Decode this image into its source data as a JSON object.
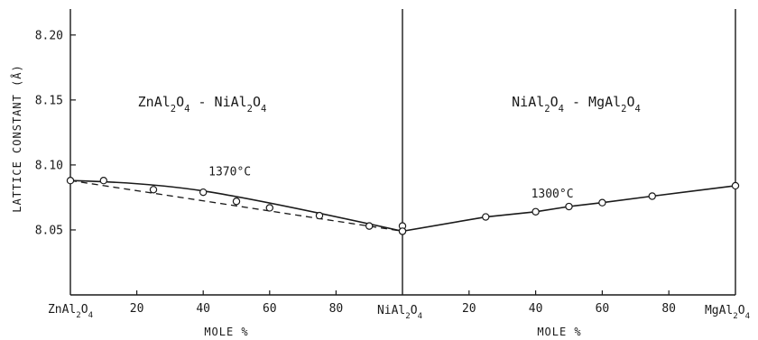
{
  "chart_data": {
    "type": "line",
    "ylabel": "LATTICE CONSTANT (Å)",
    "ylim": [
      8.0,
      8.22
    ],
    "yticks": [
      "8.05",
      "8.10",
      "8.15",
      "8.20"
    ],
    "grid": false,
    "panels": [
      {
        "title_parts": [
          "ZnAl",
          "2",
          "O",
          "4",
          " - NiAl",
          "2",
          "O",
          "4"
        ],
        "xlabel": "MOLE %",
        "xlim": [
          0,
          100
        ],
        "end_labels": [
          [
            "ZnAl",
            "2",
            "O",
            "4"
          ],
          [
            "NiAl",
            "2",
            "O",
            "4"
          ]
        ],
        "xticks": [
          "20",
          "40",
          "60",
          "80"
        ],
        "xtick_values": [
          20,
          40,
          60,
          80
        ],
        "annotation": "1370°C",
        "annotation_at": [
          48,
          8.092
        ],
        "series": [
          {
            "style": "solid",
            "x": [
              0,
              40,
              100
            ],
            "y": [
              8.088,
              8.08,
              8.049
            ]
          },
          {
            "style": "dashed",
            "x": [
              0,
              100
            ],
            "y": [
              8.088,
              8.049
            ]
          },
          {
            "style": "points",
            "x": [
              0,
              10,
              25,
              40,
              50,
              60,
              75,
              90,
              100,
              100
            ],
            "y": [
              8.088,
              8.088,
              8.081,
              8.079,
              8.072,
              8.067,
              8.061,
              8.053,
              8.049,
              8.053
            ]
          }
        ]
      },
      {
        "title_parts": [
          "NiAl",
          "2",
          "O",
          "4",
          " - MgAl",
          "2",
          "O",
          "4"
        ],
        "xlabel": "MOLE %",
        "xlim": [
          0,
          100
        ],
        "end_labels": [
          [
            "NiAl",
            "2",
            "O",
            "4"
          ],
          [
            "MgAl",
            "2",
            "O",
            "4"
          ]
        ],
        "xticks": [
          "20",
          "40",
          "60",
          "80"
        ],
        "xtick_values": [
          20,
          40,
          60,
          80
        ],
        "annotation": "1300°C",
        "annotation_at": [
          45,
          8.075
        ],
        "series": [
          {
            "style": "solid",
            "x": [
              0,
              25,
              40,
              50,
              60,
              75,
              100
            ],
            "y": [
              8.049,
              8.06,
              8.064,
              8.068,
              8.071,
              8.076,
              8.084
            ]
          },
          {
            "style": "points",
            "x": [
              0,
              25,
              40,
              50,
              60,
              75,
              100
            ],
            "y": [
              8.049,
              8.06,
              8.064,
              8.068,
              8.071,
              8.076,
              8.084
            ]
          }
        ]
      }
    ]
  }
}
